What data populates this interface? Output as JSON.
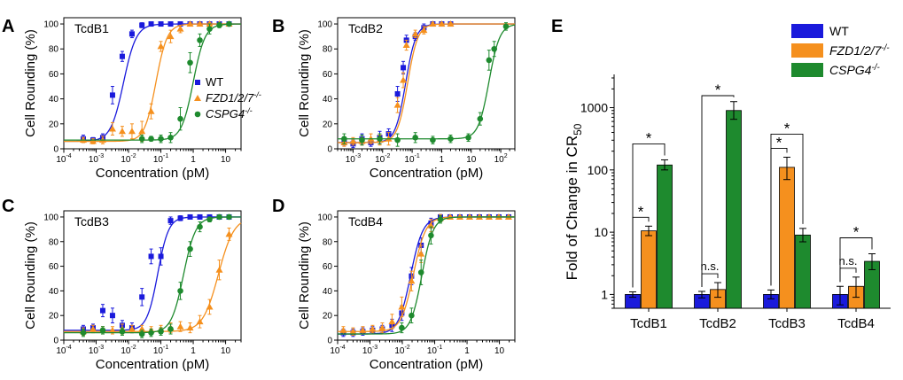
{
  "colors": {
    "WT": "#1a1adc",
    "FZD": "#f5901e",
    "CSPG4": "#1e8a2e"
  },
  "chart_data": [
    {
      "panel": "A",
      "type": "scatter",
      "title": "TcdB1",
      "xlabel": "Concentration (pM)",
      "ylabel": "Cell Rounding (%)",
      "xscale": "log",
      "xlim": [
        0.0001,
        30
      ],
      "ylim": [
        0,
        105
      ],
      "xticks": [
        "10-4",
        "10-3",
        "10-2",
        "10-1",
        "1",
        "10"
      ],
      "yticks": [
        "0",
        "20",
        "40",
        "60",
        "80",
        "100"
      ],
      "legend": {
        "position": "center-right",
        "entries": [
          "WT",
          "FZD1/2/7-/-",
          "CSPG4-/-"
        ]
      },
      "series": [
        {
          "key": "WT",
          "name": "WT",
          "marker": "square",
          "ec50": 0.007,
          "hill": 2.2,
          "bottom": 6,
          "top": 100,
          "x": [
            0.0004,
            0.0008,
            0.0016,
            0.0032,
            0.0064,
            0.0128,
            0.026,
            0.05,
            0.1,
            0.2,
            0.4,
            0.8,
            1.6,
            3.2,
            6.4,
            12.8
          ],
          "y": [
            8,
            7,
            9,
            43,
            74,
            92,
            99,
            100,
            100,
            100,
            100,
            100,
            100,
            100,
            100,
            100
          ],
          "err": [
            3,
            2,
            3,
            7,
            4,
            3,
            2,
            1,
            1,
            1,
            1,
            1,
            1,
            1,
            1,
            1
          ]
        },
        {
          "key": "FZD",
          "name": "FZD1/2/7-/-",
          "marker": "triangle",
          "ec50": 0.07,
          "hill": 2.5,
          "bottom": 6,
          "top": 100,
          "x": [
            0.0004,
            0.0008,
            0.0016,
            0.0032,
            0.0064,
            0.0128,
            0.026,
            0.05,
            0.1,
            0.2,
            0.4,
            0.8,
            1.6,
            3.2,
            6.4,
            12.8
          ],
          "y": [
            7,
            6,
            7,
            16,
            14,
            14,
            14,
            30,
            82,
            90,
            96,
            100,
            100,
            100,
            100,
            100
          ],
          "err": [
            2,
            2,
            3,
            5,
            4,
            6,
            8,
            6,
            4,
            5,
            3,
            1,
            1,
            1,
            1,
            1
          ]
        },
        {
          "key": "CSPG4",
          "name": "CSPG4-/-",
          "marker": "circle",
          "ec50": 1.0,
          "hill": 2.4,
          "bottom": 7,
          "top": 100,
          "x": [
            0.026,
            0.05,
            0.1,
            0.2,
            0.4,
            0.8,
            1.6,
            3.2,
            6.4,
            12.8
          ],
          "y": [
            8,
            8,
            8,
            9,
            24,
            69,
            87,
            96,
            99,
            100
          ],
          "err": [
            3,
            2,
            3,
            4,
            9,
            8,
            5,
            4,
            2,
            1
          ]
        }
      ]
    },
    {
      "panel": "B",
      "type": "scatter",
      "title": "TcdB2",
      "xlabel": "Concentration (pM)",
      "ylabel": "Cell Rounding (%)",
      "xscale": "log",
      "xlim": [
        0.0003,
        300
      ],
      "ylim": [
        0,
        105
      ],
      "xticks": [
        "10-3",
        "10-2",
        "10-1",
        "1",
        "10",
        "102"
      ],
      "yticks": [
        "0",
        "20",
        "40",
        "60",
        "80",
        "100"
      ],
      "series": [
        {
          "key": "WT",
          "name": "WT",
          "marker": "square",
          "ec50": 0.06,
          "hill": 2.5,
          "bottom": 5,
          "top": 100,
          "x": [
            0.0005,
            0.001,
            0.002,
            0.004,
            0.008,
            0.016,
            0.032,
            0.05,
            0.064,
            0.128,
            0.25,
            0.5,
            1,
            2
          ],
          "y": [
            6,
            4,
            8,
            5,
            9,
            12,
            44,
            65,
            87,
            90,
            97,
            100,
            100,
            100
          ],
          "err": [
            3,
            3,
            4,
            3,
            5,
            4,
            6,
            5,
            4,
            3,
            3,
            1,
            1,
            1
          ]
        },
        {
          "key": "FZD",
          "name": "FZD1/2/7-/-",
          "marker": "triangle",
          "ec50": 0.07,
          "hill": 2.5,
          "bottom": 5,
          "top": 100,
          "x": [
            0.0005,
            0.001,
            0.002,
            0.004,
            0.008,
            0.016,
            0.032,
            0.05,
            0.064,
            0.128,
            0.25,
            0.5,
            1,
            2
          ],
          "y": [
            5,
            6,
            6,
            8,
            7,
            8,
            35,
            55,
            83,
            92,
            95,
            100,
            100,
            100
          ],
          "err": [
            3,
            3,
            3,
            4,
            4,
            5,
            6,
            6,
            4,
            3,
            3,
            1,
            1,
            1
          ]
        },
        {
          "key": "CSPG4",
          "name": "CSPG4-/-",
          "marker": "circle",
          "ec50": 40,
          "hill": 2.4,
          "bottom": 8,
          "top": 100,
          "x": [
            0.0005,
            0.002,
            0.008,
            0.032,
            0.128,
            0.5,
            2,
            8,
            20,
            40,
            60,
            150
          ],
          "y": [
            8,
            7,
            8,
            7,
            9,
            7,
            8,
            9,
            24,
            71,
            80,
            98
          ],
          "err": [
            4,
            4,
            4,
            5,
            4,
            3,
            3,
            3,
            5,
            8,
            6,
            3
          ]
        }
      ]
    },
    {
      "panel": "C",
      "type": "scatter",
      "title": "TcdB3",
      "xlabel": "Concentration (pM)",
      "ylabel": "Cell Rounding (%)",
      "xscale": "log",
      "xlim": [
        0.0001,
        30
      ],
      "ylim": [
        0,
        105
      ],
      "xticks": [
        "10-4",
        "10-3",
        "10-2",
        "10-1",
        "1",
        "10"
      ],
      "yticks": [
        "0",
        "20",
        "40",
        "60",
        "80",
        "100"
      ],
      "series": [
        {
          "key": "WT",
          "name": "WT",
          "marker": "square",
          "ec50": 0.08,
          "hill": 2.6,
          "bottom": 8,
          "top": 100,
          "x": [
            0.0004,
            0.0008,
            0.0016,
            0.0032,
            0.0064,
            0.0128,
            0.026,
            0.05,
            0.1,
            0.2,
            0.4,
            0.8,
            1.6,
            3.2,
            6.4,
            12.8
          ],
          "y": [
            9,
            10,
            24,
            20,
            12,
            10,
            35,
            68,
            68,
            97,
            99,
            100,
            100,
            100,
            100,
            100
          ],
          "err": [
            3,
            3,
            5,
            6,
            4,
            4,
            7,
            6,
            7,
            3,
            2,
            1,
            1,
            1,
            1,
            1
          ]
        },
        {
          "key": "FZD",
          "name": "FZD1/2/7-/-",
          "marker": "triangle",
          "ec50": 6.0,
          "hill": 1.8,
          "bottom": 7,
          "top": 100,
          "x": [
            0.0004,
            0.0008,
            0.0016,
            0.0032,
            0.0064,
            0.0128,
            0.026,
            0.05,
            0.1,
            0.2,
            0.4,
            0.8,
            1.6,
            3.2,
            6.4,
            12.8
          ],
          "y": [
            7,
            9,
            8,
            8,
            9,
            9,
            9,
            8,
            9,
            10,
            11,
            10,
            15,
            27,
            57,
            86
          ],
          "err": [
            3,
            3,
            3,
            3,
            4,
            3,
            3,
            3,
            3,
            4,
            4,
            4,
            5,
            6,
            8,
            5
          ]
        },
        {
          "key": "CSPG4",
          "name": "CSPG4-/-",
          "marker": "circle",
          "ec50": 0.5,
          "hill": 2.3,
          "bottom": 6,
          "top": 100,
          "x": [
            0.0004,
            0.0016,
            0.0064,
            0.026,
            0.05,
            0.1,
            0.2,
            0.4,
            0.8,
            1.6,
            3.2,
            6.4,
            12.8
          ],
          "y": [
            6,
            8,
            7,
            5,
            6,
            7,
            9,
            40,
            74,
            92,
            98,
            100,
            100
          ],
          "err": [
            3,
            3,
            3,
            3,
            3,
            3,
            4,
            7,
            6,
            4,
            2,
            1,
            1
          ]
        }
      ]
    },
    {
      "panel": "D",
      "type": "scatter",
      "title": "TcdB4",
      "xlabel": "Concentration (pM)",
      "ylabel": "Cell Rounding (%)",
      "xscale": "log",
      "xlim": [
        0.0001,
        30
      ],
      "ylim": [
        0,
        105
      ],
      "xticks": [
        "10-4",
        "10-3",
        "10-2",
        "10-1",
        "1",
        "10"
      ],
      "yticks": [
        "0",
        "20",
        "40",
        "60",
        "80",
        "100"
      ],
      "series": [
        {
          "key": "WT",
          "name": "WT",
          "marker": "square",
          "ec50": 0.018,
          "hill": 2.3,
          "bottom": 5,
          "top": 100,
          "x": [
            0.00015,
            0.0003,
            0.0006,
            0.0012,
            0.0024,
            0.0048,
            0.0096,
            0.0192,
            0.038,
            0.077,
            0.15,
            0.3,
            0.6,
            1.2,
            2.4,
            4.8,
            9.6,
            19.2
          ],
          "y": [
            6,
            6,
            7,
            8,
            9,
            12,
            22,
            52,
            77,
            95,
            100,
            100,
            100,
            100,
            100,
            100,
            100,
            100
          ],
          "err": [
            3,
            3,
            3,
            3,
            3,
            5,
            6,
            7,
            6,
            4,
            2,
            1,
            1,
            1,
            1,
            1,
            1,
            1
          ]
        },
        {
          "key": "FZD",
          "name": "FZD1/2/7-/-",
          "marker": "triangle",
          "ec50": 0.022,
          "hill": 2.3,
          "bottom": 7,
          "top": 100,
          "x": [
            0.00015,
            0.0003,
            0.0006,
            0.0012,
            0.0024,
            0.0048,
            0.0096,
            0.0192,
            0.038,
            0.077,
            0.15,
            0.3,
            0.6,
            1.2,
            2.4,
            4.8,
            9.6,
            19.2
          ],
          "y": [
            8,
            7,
            8,
            9,
            10,
            15,
            27,
            48,
            70,
            93,
            99,
            100,
            100,
            100,
            100,
            100,
            100,
            100
          ],
          "err": [
            3,
            3,
            3,
            3,
            4,
            6,
            8,
            8,
            7,
            5,
            3,
            1,
            1,
            1,
            1,
            1,
            1,
            1
          ]
        },
        {
          "key": "CSPG4",
          "name": "CSPG4-/-",
          "marker": "circle",
          "ec50": 0.04,
          "hill": 2.5,
          "bottom": 5,
          "top": 100,
          "x": [
            0.0096,
            0.0192,
            0.038,
            0.077,
            0.15
          ],
          "y": [
            10,
            20,
            55,
            85,
            98
          ],
          "err": [
            4,
            6,
            10,
            7,
            3
          ]
        }
      ]
    },
    {
      "panel": "E",
      "type": "bar",
      "ylabel": "Fold of Change in CR50",
      "yscale": "log",
      "ylim": [
        0.6,
        3000
      ],
      "yticks": [
        "1",
        "10",
        "100",
        "1000"
      ],
      "categories": [
        "TcdB1",
        "TcdB2",
        "TcdB3",
        "TcdB4"
      ],
      "legend": {
        "position": "top-right",
        "entries": [
          "WT",
          "FZD1/2/7-/-",
          "CSPG4-/-"
        ]
      },
      "series": [
        {
          "key": "WT",
          "name": "WT",
          "values": [
            1,
            1,
            1,
            1
          ],
          "err_low": [
            0.9,
            0.88,
            0.85,
            0.68
          ],
          "err_high": [
            1.1,
            1.12,
            1.18,
            1.35
          ]
        },
        {
          "key": "FZD",
          "name": "FZD1/2/7-/-",
          "values": [
            10.5,
            1.2,
            110,
            1.35
          ],
          "err_low": [
            8.8,
            0.9,
            70,
            0.9
          ],
          "err_high": [
            12.5,
            1.55,
            160,
            1.9
          ]
        },
        {
          "key": "CSPG4",
          "name": "CSPG4-/-",
          "values": [
            120,
            900,
            9,
            3.4
          ],
          "err_low": [
            100,
            650,
            7,
            2.5
          ],
          "err_high": [
            145,
            1250,
            11.5,
            4.5
          ]
        }
      ],
      "annotations": [
        {
          "category": 0,
          "from": 0,
          "to": 1,
          "text": "*"
        },
        {
          "category": 0,
          "from": 0,
          "to": 2,
          "text": "*"
        },
        {
          "category": 1,
          "from": 0,
          "to": 1,
          "text": "n.s."
        },
        {
          "category": 1,
          "from": 0,
          "to": 2,
          "text": "*"
        },
        {
          "category": 2,
          "from": 0,
          "to": 1,
          "text": "*"
        },
        {
          "category": 2,
          "from": 0,
          "to": 2,
          "text": "*"
        },
        {
          "category": 3,
          "from": 0,
          "to": 1,
          "text": "n.s."
        },
        {
          "category": 3,
          "from": 0,
          "to": 2,
          "text": "*"
        }
      ]
    }
  ]
}
